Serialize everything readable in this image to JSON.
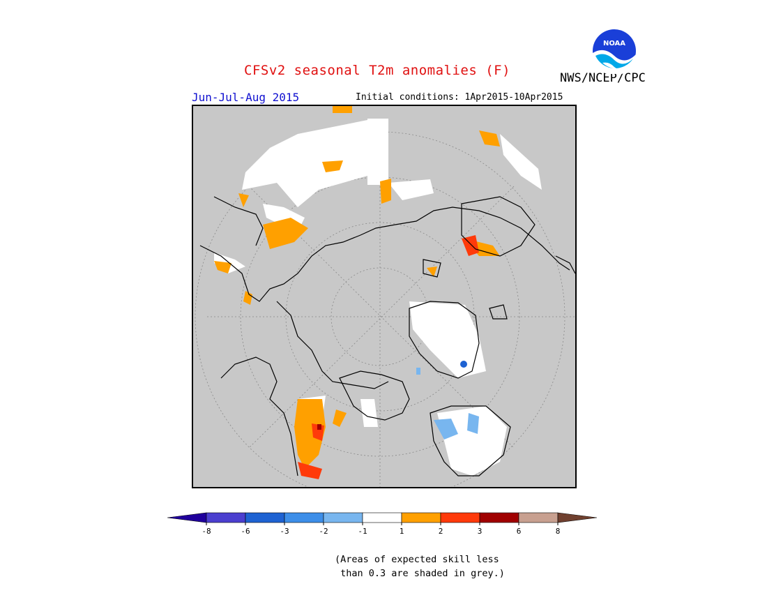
{
  "header": {
    "title": "CFSv2 seasonal T2m anomalies (F)",
    "agency": "NWS/NCEP/CPC",
    "logo_text": "NOAA",
    "period": "Jun-Jul-Aug 2015",
    "initial_conditions": "Initial conditions: 1Apr2015-10Apr2015"
  },
  "map": {
    "projection": "north-polar-stereographic",
    "background_color": "#c8c8c8",
    "land_outline_color": "#000000"
  },
  "legend": {
    "colors": [
      "#20009c",
      "#4b3fcf",
      "#1e62d2",
      "#3d8ee8",
      "#78b6ef",
      "#ffffff",
      "#ffa000",
      "#ff3a0a",
      "#a00000",
      "#c8a090",
      "#70402f"
    ],
    "ticks": [
      "-8",
      "-6",
      "-3",
      "-2",
      "-1",
      "1",
      "2",
      "3",
      "6",
      "8"
    ]
  },
  "note": "(Areas of expected skill less\n than 0.3 are shaded in grey.)"
}
